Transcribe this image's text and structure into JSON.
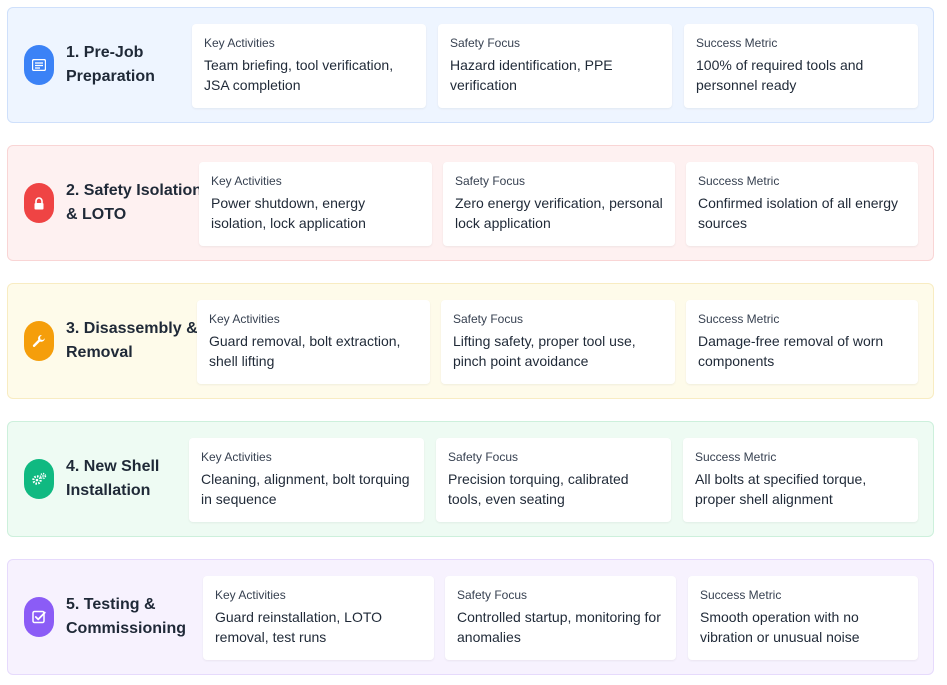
{
  "steps": [
    {
      "title": "1. Pre-Job\nPreparation",
      "icon": "id-card-icon",
      "accent": "#3b82f6",
      "bg": "#eef5ff",
      "border": "#cfe0fb",
      "cards": [
        {
          "heading": "Key Activities",
          "text": "Team briefing, tool verification, JSA completion"
        },
        {
          "heading": "Safety Focus",
          "text": "Hazard identification, PPE verification"
        },
        {
          "heading": "Success Metric",
          "text": "100% of required tools and personnel ready"
        }
      ]
    },
    {
      "title": "2. Safety Isolation\n& LOTO",
      "icon": "lock-icon",
      "accent": "#ef4444",
      "bg": "#fef1f1",
      "border": "#f9d5d5",
      "cards": [
        {
          "heading": "Key Activities",
          "text": "Power shutdown, energy isolation, lock application"
        },
        {
          "heading": "Safety Focus",
          "text": "Zero energy verification, personal lock application"
        },
        {
          "heading": "Success Metric",
          "text": "Confirmed isolation of all energy sources"
        }
      ]
    },
    {
      "title": "3. Disassembly &\nRemoval",
      "icon": "wrench-icon",
      "accent": "#f59e0b",
      "bg": "#fefbea",
      "border": "#f8ecc2",
      "cards": [
        {
          "heading": "Key Activities",
          "text": "Guard removal, bolt extraction, shell lifting"
        },
        {
          "heading": "Safety Focus",
          "text": "Lifting safety, proper tool use, pinch point avoidance"
        },
        {
          "heading": "Success Metric",
          "text": "Damage-free removal of worn components"
        }
      ]
    },
    {
      "title": "4. New Shell\nInstallation",
      "icon": "gears-icon",
      "accent": "#10b981",
      "bg": "#eefbf3",
      "border": "#cdf0dc",
      "cards": [
        {
          "heading": "Key Activities",
          "text": "Cleaning, alignment, bolt torquing in sequence"
        },
        {
          "heading": "Safety Focus",
          "text": "Precision torquing, calibrated tools, even seating"
        },
        {
          "heading": "Success Metric",
          "text": "All bolts at specified torque, proper shell alignment"
        }
      ]
    },
    {
      "title": "5. Testing &\nCommissioning",
      "icon": "checkbox-icon",
      "accent": "#8b5cf6",
      "bg": "#f7f2fe",
      "border": "#e6dafc",
      "cards": [
        {
          "heading": "Key Activities",
          "text": "Guard reinstallation, LOTO removal, test runs"
        },
        {
          "heading": "Safety Focus",
          "text": "Controlled startup, monitoring for anomalies"
        },
        {
          "heading": "Success Metric",
          "text": "Smooth operation with no vibration or unusual noise"
        }
      ]
    }
  ]
}
